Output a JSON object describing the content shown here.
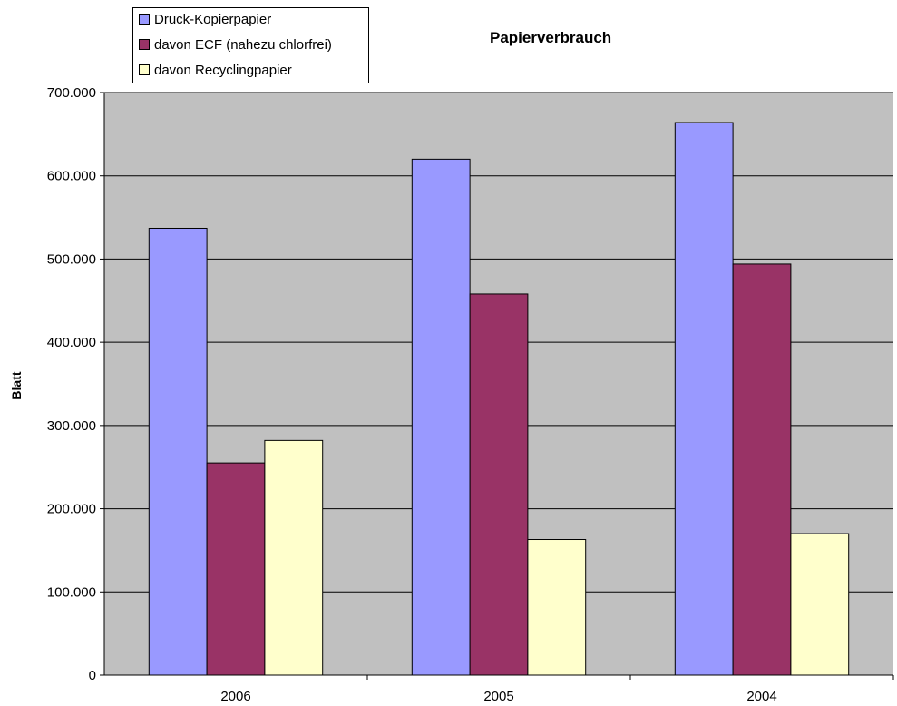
{
  "chart_data": {
    "type": "bar",
    "title": "Papierverbrauch",
    "xlabel": "",
    "ylabel": "Blatt",
    "categories": [
      "2006",
      "2005",
      "2004"
    ],
    "series": [
      {
        "name": "Druck-Kopierpapier",
        "values": [
          537000,
          620000,
          664000
        ],
        "color": "#9999ff"
      },
      {
        "name": "davon ECF (nahezu chlorfrei)",
        "values": [
          255000,
          458000,
          494000
        ],
        "color": "#993366"
      },
      {
        "name": "davon Recyclingpapier",
        "values": [
          282000,
          163000,
          170000
        ],
        "color": "#ffffcc"
      }
    ],
    "ylim": [
      0,
      700000
    ],
    "yticks": [
      0,
      100000,
      200000,
      300000,
      400000,
      500000,
      600000,
      700000
    ],
    "ytick_labels": [
      "0",
      "100.000",
      "200.000",
      "300.000",
      "400.000",
      "500.000",
      "600.000",
      "700.000"
    ],
    "grid": true,
    "plot_background": "#c0c0c0",
    "legend_position": "top-left"
  }
}
